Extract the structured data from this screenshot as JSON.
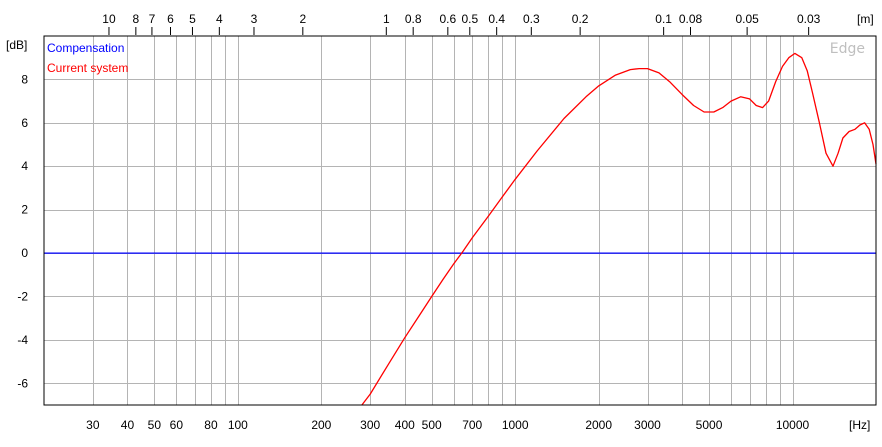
{
  "chart_data": {
    "type": "line",
    "xscale": "log",
    "xlim": [
      20,
      20000
    ],
    "ylim": [
      -7,
      10
    ],
    "grid": true,
    "y_unit_label": "[dB]",
    "x_unit_label": "[Hz]",
    "top_unit_label": "[m]",
    "watermark": "Edge",
    "legend": {
      "position": "top-left",
      "entries": [
        "Compensation",
        "Current system"
      ]
    },
    "x_ticks": [
      {
        "value": 30,
        "label": "30"
      },
      {
        "value": 40,
        "label": "40"
      },
      {
        "value": 50,
        "label": "50"
      },
      {
        "value": 60,
        "label": "60"
      },
      {
        "value": 80,
        "label": "80"
      },
      {
        "value": 100,
        "label": "100"
      },
      {
        "value": 200,
        "label": "200"
      },
      {
        "value": 300,
        "label": "300"
      },
      {
        "value": 400,
        "label": "400"
      },
      {
        "value": 500,
        "label": "500"
      },
      {
        "value": 700,
        "label": "700"
      },
      {
        "value": 1000,
        "label": "1000"
      },
      {
        "value": 2000,
        "label": "2000"
      },
      {
        "value": 3000,
        "label": "3000"
      },
      {
        "value": 5000,
        "label": "5000"
      },
      {
        "value": 10000,
        "label": "10000"
      }
    ],
    "x_minor": [
      70,
      90,
      600,
      800,
      900,
      4000,
      6000,
      7000,
      8000,
      9000
    ],
    "y_ticks": [
      -6,
      -4,
      -2,
      0,
      2,
      4,
      6,
      8
    ],
    "top_ticks": [
      {
        "label": "10",
        "value": 10
      },
      {
        "label": "8",
        "value": 8
      },
      {
        "label": "7",
        "value": 7
      },
      {
        "label": "6",
        "value": 6
      },
      {
        "label": "5",
        "value": 5
      },
      {
        "label": "4",
        "value": 4
      },
      {
        "label": "3",
        "value": 3
      },
      {
        "label": "2",
        "value": 2
      },
      {
        "label": "1",
        "value": 1
      },
      {
        "label": "0.8",
        "value": 0.8
      },
      {
        "label": "0.6",
        "value": 0.6
      },
      {
        "label": "0.5",
        "value": 0.5
      },
      {
        "label": "0.4",
        "value": 0.4
      },
      {
        "label": "0.3",
        "value": 0.3
      },
      {
        "label": "0.2",
        "value": 0.2
      },
      {
        "label": "0.1",
        "value": 0.1
      },
      {
        "label": "0.08",
        "value": 0.08
      },
      {
        "label": "0.05",
        "value": 0.05
      },
      {
        "label": "0.03",
        "value": 0.03
      }
    ],
    "series": [
      {
        "name": "Compensation",
        "color": "#0000ff",
        "x": [
          20,
          20000
        ],
        "y": [
          0,
          0
        ]
      },
      {
        "name": "Current system",
        "color": "#ff0000",
        "x": [
          280,
          300,
          350,
          400,
          450,
          500,
          550,
          600,
          650,
          700,
          800,
          900,
          1000,
          1200,
          1500,
          1800,
          2000,
          2300,
          2600,
          2800,
          3000,
          3300,
          3600,
          4000,
          4400,
          4800,
          5200,
          5600,
          6000,
          6500,
          7000,
          7400,
          7800,
          8200,
          8700,
          9200,
          9700,
          10200,
          10800,
          11300,
          11800,
          12500,
          13200,
          14000,
          14600,
          15200,
          16000,
          16800,
          17500,
          18200,
          18900,
          19500,
          20000
        ],
        "y": [
          -7.0,
          -6.5,
          -5.1,
          -3.9,
          -2.9,
          -2.0,
          -1.2,
          -0.5,
          0.1,
          0.7,
          1.7,
          2.6,
          3.4,
          4.7,
          6.2,
          7.2,
          7.7,
          8.2,
          8.45,
          8.5,
          8.5,
          8.3,
          7.9,
          7.3,
          6.8,
          6.5,
          6.5,
          6.7,
          7.0,
          7.2,
          7.1,
          6.8,
          6.7,
          7.0,
          7.9,
          8.6,
          9.0,
          9.2,
          9.0,
          8.4,
          7.4,
          6.0,
          4.6,
          4.0,
          4.6,
          5.3,
          5.6,
          5.7,
          5.9,
          6.0,
          5.7,
          5.0,
          4.1
        ]
      }
    ]
  }
}
